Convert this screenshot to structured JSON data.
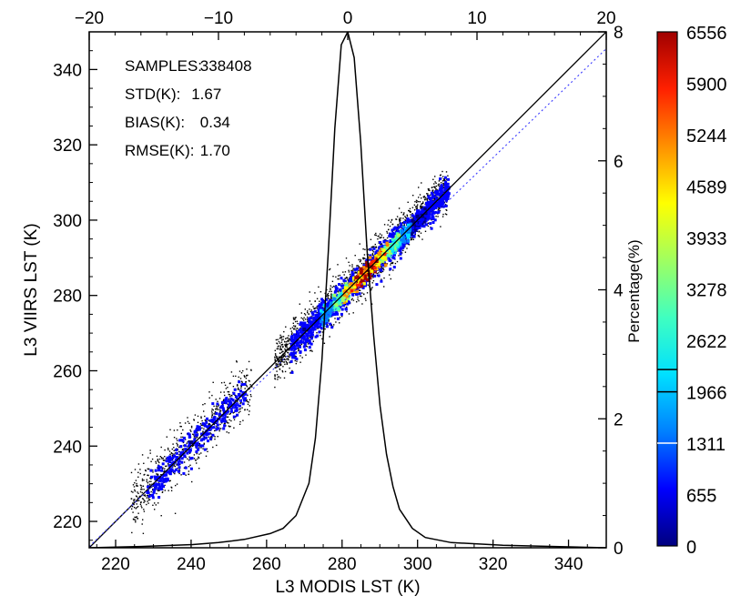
{
  "chart_data": {
    "type": "scatter",
    "subtype": "density-scatter with histogram overlay",
    "xlabel": "L3 MODIS LST (K)",
    "ylabel": "L3 VIIRS LST (K)",
    "y2label": "Percentage(%)",
    "xlim": [
      213,
      350
    ],
    "ylim": [
      213,
      350
    ],
    "xticks": [
      "220",
      "240",
      "260",
      "280",
      "300",
      "320",
      "340"
    ],
    "yticks": [
      "220",
      "240",
      "260",
      "280",
      "300",
      "320",
      "340"
    ],
    "x2lim": [
      -20,
      20
    ],
    "x2ticks": [
      "−20",
      "−10",
      "0",
      "10",
      "20"
    ],
    "y2lim": [
      0,
      8
    ],
    "y2ticks": [
      "0",
      "2",
      "4",
      "6",
      "8"
    ],
    "stats": [
      {
        "label": "SAMPLES:",
        "value": "338408"
      },
      {
        "label": "STD(K):",
        "value": "1.67"
      },
      {
        "label": "BIAS(K):",
        "value": "0.34"
      },
      {
        "label": "RMSE(K):",
        "value": "1.70"
      }
    ],
    "one_to_one_line": true,
    "fit_line": {
      "slope": 0.965,
      "intercept": 7.78,
      "color": "#3c3cff",
      "style": "dotted"
    },
    "difference_histogram": {
      "x": [
        -20,
        -16,
        -12,
        -10,
        -8,
        -6,
        -5,
        -4,
        -3,
        -2.5,
        -2,
        -1.5,
        -1,
        -0.5,
        0,
        0.5,
        1,
        1.5,
        2,
        2.5,
        3,
        3.5,
        4,
        5,
        6,
        8,
        12,
        16,
        20
      ],
      "y": [
        0.0,
        0.02,
        0.05,
        0.08,
        0.13,
        0.22,
        0.3,
        0.5,
        1.0,
        1.7,
        2.9,
        4.6,
        6.5,
        7.8,
        8.0,
        7.6,
        6.3,
        4.6,
        3.3,
        2.2,
        1.45,
        0.95,
        0.6,
        0.3,
        0.16,
        0.08,
        0.04,
        0.02,
        0.0
      ]
    },
    "density_clusters": [
      {
        "x": 285,
        "y": 287,
        "count": 6556
      },
      {
        "x": 290,
        "y": 291,
        "count": 5244
      },
      {
        "x": 281,
        "y": 282,
        "count": 4589
      },
      {
        "x": 295,
        "y": 296,
        "count": 3278
      },
      {
        "x": 278,
        "y": 279,
        "count": 1966
      },
      {
        "x": 300,
        "y": 301,
        "count": 655
      },
      {
        "x": 240,
        "y": 241,
        "count": 655
      },
      {
        "x": 270,
        "y": 271,
        "count": 655
      }
    ],
    "colorbar": {
      "ticks": [
        "0",
        "655",
        "1311",
        "1966",
        "2622",
        "3278",
        "3933",
        "4589",
        "5244",
        "5900",
        "6556"
      ],
      "min": 0,
      "max": 6556,
      "colors": [
        "#00007f",
        "#0000ff",
        "#0080ff",
        "#00e0ff",
        "#40ffc0",
        "#a0ff60",
        "#ffff00",
        "#ff9000",
        "#ff2000",
        "#a00000"
      ]
    }
  }
}
